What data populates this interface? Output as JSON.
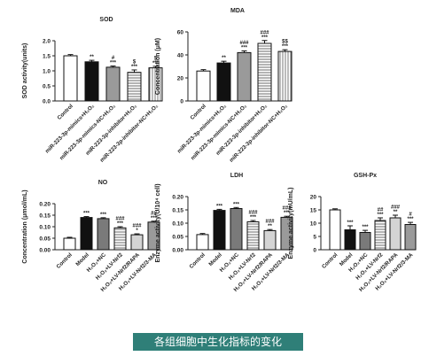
{
  "caption": "各组细胞中生化指标的变化",
  "colors": {
    "caption_bg": "#2f7f78"
  },
  "chart_data": [
    {
      "type": "bar",
      "title": "SOD",
      "ylabel": "SOD activity(units)",
      "ylim": [
        0,
        2.0
      ],
      "yticks": [
        0.0,
        0.5,
        1.0,
        1.5,
        2.0
      ],
      "categories": [
        "Control",
        "miR-223-3p-mimics+H₂O₂",
        "miR-223-3p-mimics-NC+H₂O₂",
        "miR-223-3p-inhibitor+H₂O₂",
        "miR-223-3p-inhibitor-NC+H₂O₂"
      ],
      "values": [
        1.5,
        1.3,
        1.12,
        0.95,
        1.1
      ],
      "errors": [
        0.04,
        0.05,
        0.04,
        0.08,
        0.05
      ],
      "annotations": [
        "",
        "**",
        "#\n***",
        "$\n***",
        "$\n***"
      ],
      "fills": [
        "white",
        "black",
        "gray",
        "hlines",
        "vlines"
      ]
    },
    {
      "type": "bar",
      "title": "MDA",
      "ylabel": "Concentration (μM)",
      "ylim": [
        0,
        60
      ],
      "yticks": [
        0,
        20,
        40,
        60
      ],
      "categories": [
        "Control",
        "miR-223-3p-mimics+H₂O₂",
        "miR-223-3p-mimics-NC+H₂O₂",
        "miR-223-3p-inhibitor+H₂O₂",
        "miR-223-3p-inhibitor-NC+H₂O₂"
      ],
      "values": [
        26,
        33,
        42,
        50,
        43
      ],
      "errors": [
        1.2,
        1.5,
        1.5,
        2.5,
        1.5
      ],
      "annotations": [
        "",
        "**",
        "###\n***",
        "###\n***",
        "$$\n***"
      ],
      "fills": [
        "white",
        "black",
        "gray",
        "hlines",
        "vlines"
      ]
    },
    {
      "type": "bar",
      "title": "NO",
      "ylabel": "Concentration (μmol/mL)",
      "ylim": [
        0,
        0.2
      ],
      "yticks": [
        0.0,
        0.05,
        0.1,
        0.15,
        0.2
      ],
      "categories": [
        "Control",
        "Model",
        "H₂O₂+NC",
        "H₂O₂+LV-Nrf2",
        "H₂O₂+LV-Nrf2/RAPA",
        "H₂O₂+LV-Nrf2/3-MA"
      ],
      "values": [
        0.05,
        0.14,
        0.135,
        0.095,
        0.065,
        0.12
      ],
      "errors": [
        0.004,
        0.004,
        0.004,
        0.005,
        0.004,
        0.004
      ],
      "annotations": [
        "",
        "***",
        "***",
        "###\n***",
        "###\n*",
        "##\n***"
      ],
      "fills": [
        "white",
        "black",
        "dgray",
        "hlines",
        "lgray",
        "gray"
      ]
    },
    {
      "type": "bar",
      "title": "LDH",
      "ylabel": "Enzyme activity(U/10⁴ cell)",
      "ylim": [
        0,
        0.2
      ],
      "yticks": [
        0.0,
        0.05,
        0.1,
        0.15,
        0.2
      ],
      "categories": [
        "Control",
        "Model",
        "H₂O₂+NC",
        "H₂O₂+LV-Nrf2",
        "H₂O₂+LV-Nrf2/RAPA",
        "H₂O₂+LV-Nrf2/3-MA"
      ],
      "values": [
        0.057,
        0.148,
        0.155,
        0.105,
        0.072,
        0.122
      ],
      "errors": [
        0.004,
        0.004,
        0.004,
        0.005,
        0.004,
        0.004
      ],
      "annotations": [
        "",
        "***",
        "***",
        "###\n***",
        "###\n**",
        "###\n***"
      ],
      "fills": [
        "white",
        "black",
        "dgray",
        "hlines",
        "lgray",
        "gray"
      ]
    },
    {
      "type": "bar",
      "title": "GSH-Px",
      "ylabel": "Enzyme activity(mU/mL)",
      "ylim": [
        0,
        20
      ],
      "yticks": [
        0,
        5,
        10,
        15,
        20
      ],
      "categories": [
        "Control",
        "Model",
        "H₂O₂+NC",
        "H₂O₂+LV-Nrf2",
        "H₂O₂+LV-Nrf2/RAPA",
        "H₂O₂+LV-Nrf2/3-MA"
      ],
      "values": [
        15,
        7.5,
        6.5,
        11,
        12,
        9.5
      ],
      "errors": [
        0.4,
        1.5,
        0.8,
        1.0,
        1.0,
        0.8
      ],
      "annotations": [
        "",
        "***",
        "***",
        "##\n***",
        "###\n**",
        "#\n***"
      ],
      "fills": [
        "white",
        "black",
        "dgray",
        "hlines",
        "lgray",
        "gray"
      ]
    }
  ]
}
